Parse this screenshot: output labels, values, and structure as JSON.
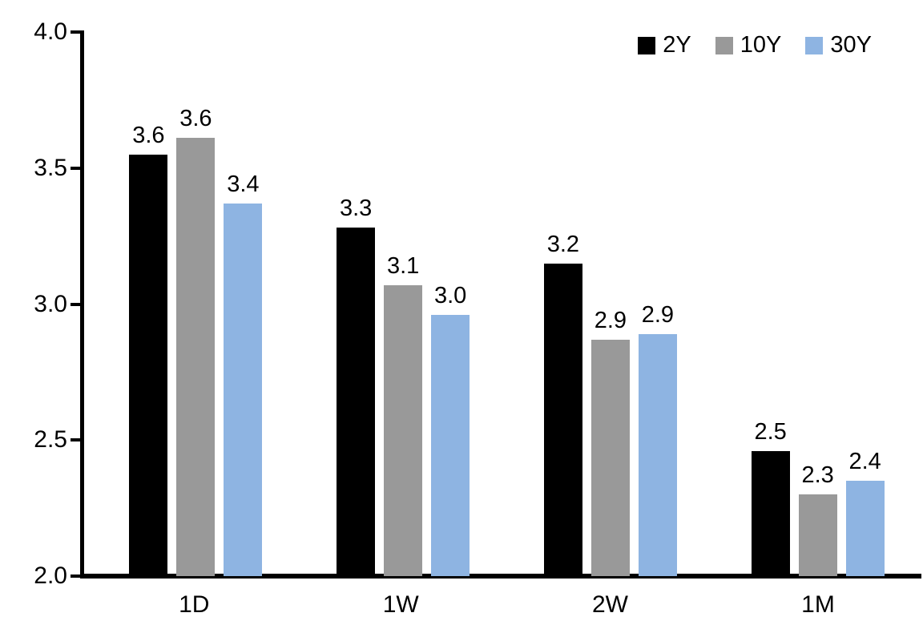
{
  "chart_data": {
    "type": "bar",
    "categories": [
      "1D",
      "1W",
      "2W",
      "1M"
    ],
    "series": [
      {
        "name": "2Y",
        "color": "#000000",
        "values": [
          3.55,
          3.28,
          3.15,
          2.46
        ],
        "labels": [
          "3.6",
          "3.3",
          "3.2",
          "2.5"
        ]
      },
      {
        "name": "10Y",
        "color": "#999999",
        "values": [
          3.61,
          3.07,
          2.87,
          2.3
        ],
        "labels": [
          "3.6",
          "3.1",
          "2.9",
          "2.3"
        ]
      },
      {
        "name": "30Y",
        "color": "#8EB4E2",
        "values": [
          3.37,
          2.96,
          2.89,
          2.35
        ],
        "labels": [
          "3.4",
          "3.0",
          "2.9",
          "2.4"
        ]
      }
    ],
    "title": "",
    "xlabel": "",
    "ylabel": "",
    "ylim": [
      2.0,
      4.0
    ],
    "y_ticks": [
      "2.0",
      "2.5",
      "3.0",
      "3.5",
      "4.0"
    ],
    "grid": false,
    "legend_position": "top-right",
    "axis_color": "#000000",
    "background_color": "#ffffff"
  }
}
